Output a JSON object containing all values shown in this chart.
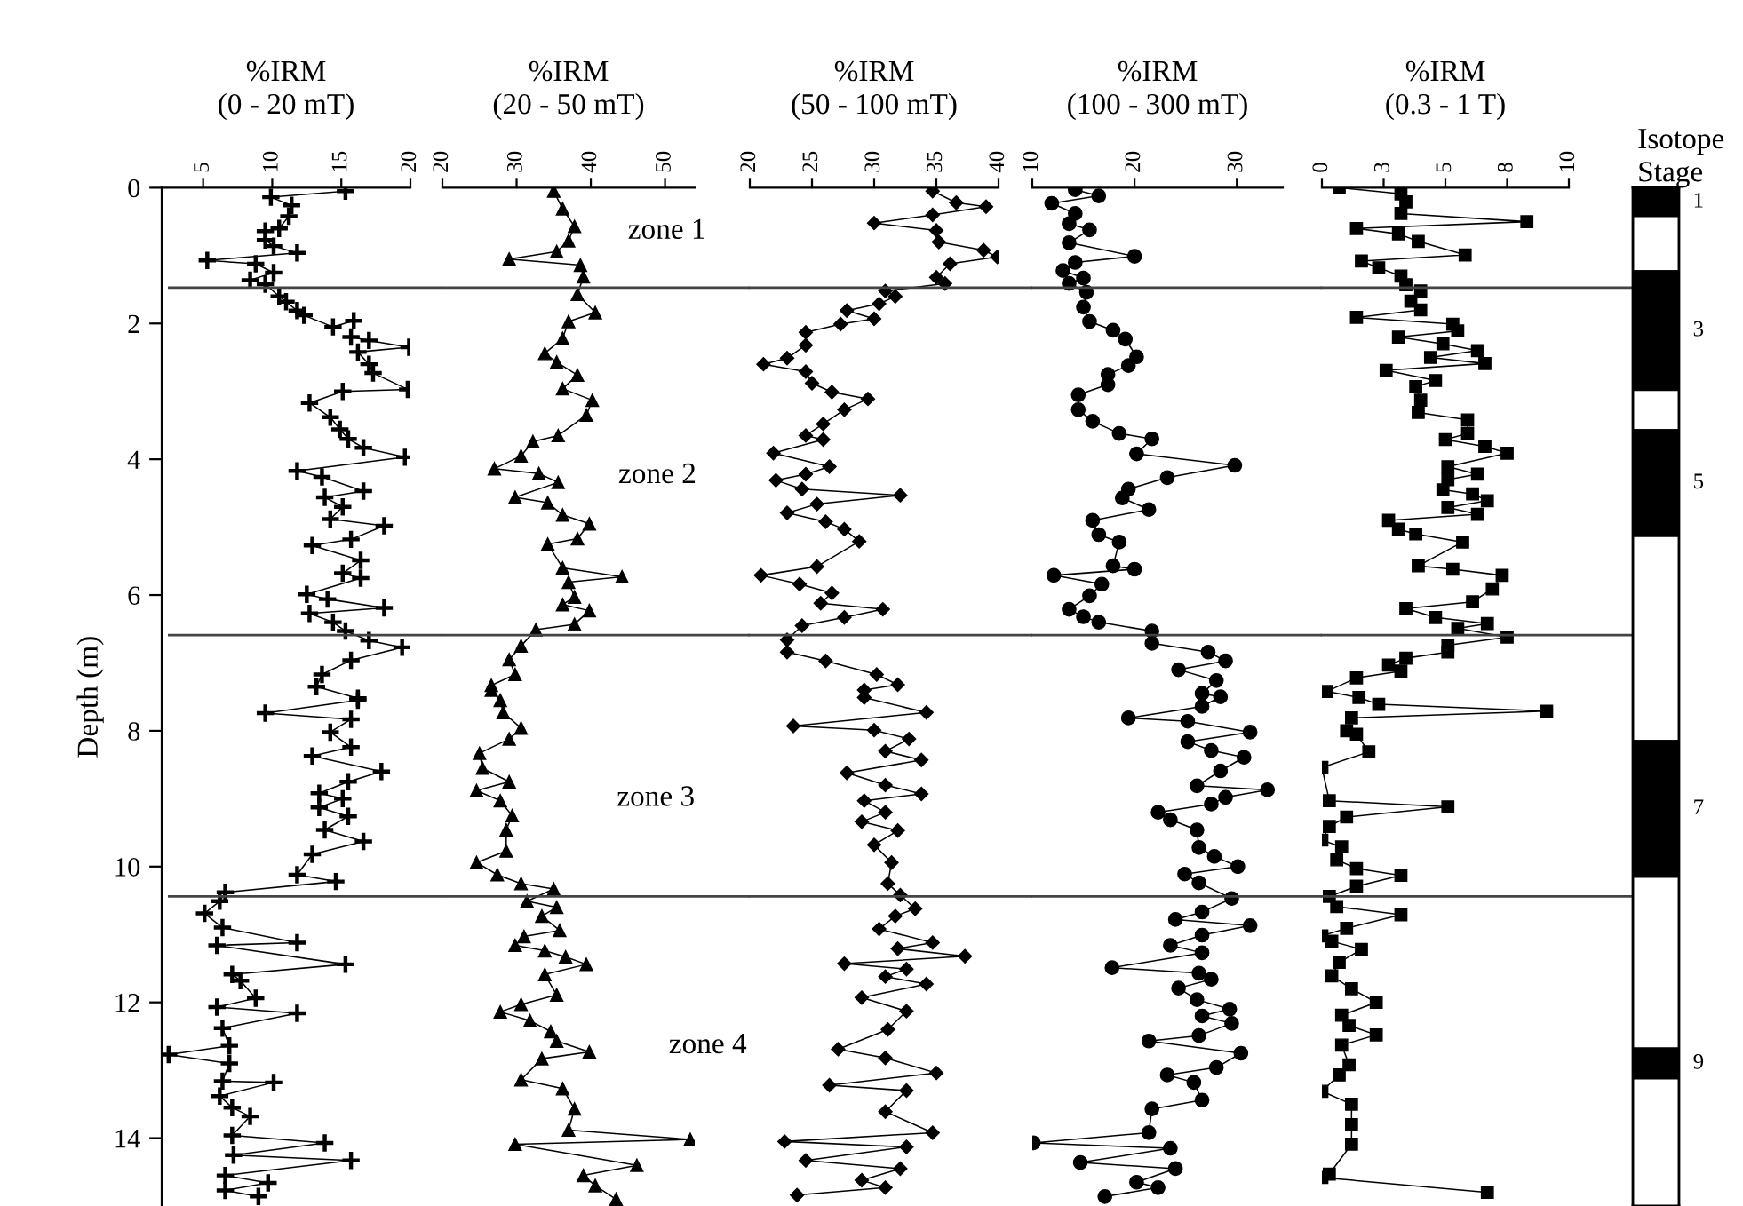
{
  "chart_data": [
    {
      "type": "line",
      "title": "%IRM\n(0 - 20 mT)",
      "ylabel": "Depth (m)",
      "marker": "cross",
      "xlim": [
        2,
        20
      ],
      "xticks": [
        5,
        10,
        15,
        20
      ],
      "ylim": [
        15,
        0
      ],
      "yticks": [
        0,
        2,
        4,
        6,
        8,
        10,
        12,
        14
      ],
      "series": [
        {
          "color": "#000000",
          "x": [
            15.3,
            9.9,
            11.4,
            11.2,
            10.5,
            9.5,
            9.5,
            10.1,
            11.8,
            5.3,
            8.8,
            10.1,
            8.4,
            9.5,
            10.5,
            11.0,
            11.8,
            12.3,
            14.4,
            15.9,
            15.7,
            17.0,
            19.9,
            16.2,
            17.0,
            17.3,
            19.8,
            15.1,
            12.7,
            14.2,
            14.9,
            15.5,
            16.6,
            19.6,
            11.8,
            13.6,
            16.6,
            13.8,
            15.1,
            14.2,
            18.1,
            15.7,
            12.9,
            16.4,
            15.1,
            16.4,
            12.5,
            14.0,
            18.1,
            12.7,
            14.4,
            15.3,
            17.0,
            19.4,
            15.7,
            13.6,
            13.2,
            16.2,
            16.2,
            9.5,
            15.7,
            14.2,
            15.7,
            12.9,
            17.9,
            15.5,
            13.4,
            15.1,
            13.4,
            15.5,
            13.8,
            16.6,
            12.9,
            11.8,
            14.6,
            6.6,
            6.2,
            5.1,
            6.4,
            11.8,
            6.0,
            15.3,
            7.1,
            7.7,
            8.8,
            6.0,
            11.8,
            6.4,
            6.9,
            2.5,
            6.9,
            6.4,
            10.1,
            6.2,
            7.1,
            8.4,
            7.1,
            13.8,
            7.2,
            15.7,
            6.6,
            9.7,
            6.6,
            9.0
          ],
          "values": [
            0.05,
            0.14,
            0.26,
            0.42,
            0.6,
            0.64,
            0.77,
            0.86,
            0.96,
            1.07,
            1.12,
            1.25,
            1.36,
            1.42,
            1.6,
            1.68,
            1.81,
            1.88,
            2.05,
            1.96,
            2.2,
            2.25,
            2.35,
            2.42,
            2.6,
            2.73,
            2.97,
            3.0,
            3.17,
            3.38,
            3.56,
            3.7,
            3.83,
            3.97,
            4.17,
            4.26,
            4.47,
            4.56,
            4.7,
            4.88,
            4.98,
            5.18,
            5.27,
            5.49,
            5.68,
            5.75,
            5.99,
            6.06,
            6.19,
            6.27,
            6.4,
            6.53,
            6.67,
            6.77,
            6.96,
            7.17,
            7.35,
            7.52,
            7.55,
            7.74,
            7.83,
            8.02,
            8.24,
            8.37,
            8.6,
            8.75,
            8.92,
            9.0,
            9.13,
            9.26,
            9.46,
            9.63,
            9.82,
            10.12,
            10.22,
            10.38,
            10.51,
            10.69,
            10.9,
            11.12,
            11.16,
            11.44,
            11.59,
            11.68,
            11.94,
            12.07,
            12.16,
            12.38,
            12.64,
            12.77,
            12.9,
            13.16,
            13.18,
            13.38,
            13.55,
            13.68,
            13.96,
            14.07,
            14.25,
            14.33,
            14.55,
            14.66,
            14.77,
            14.86
          ]
        }
      ],
      "ref_lines": [
        {
          "axis": "y",
          "value": 1.47
        },
        {
          "axis": "y",
          "value": 6.59
        },
        {
          "axis": "y",
          "value": 10.44
        }
      ],
      "tick_labels": true
    },
    {
      "type": "line",
      "title": "%IRM\n(20 - 50 mT)",
      "marker": "triangle",
      "xlim": [
        20,
        54
      ],
      "xticks": [
        20,
        30,
        40,
        50
      ],
      "ylim": [
        15,
        0
      ],
      "tick_labels": "x",
      "series": [
        {
          "color": "#000000",
          "x": [
            35.0,
            36.2,
            37.8,
            37.0,
            35.4,
            29.0,
            38.6,
            39.0,
            38.2,
            40.6,
            37.0,
            36.2,
            33.8,
            35.4,
            38.2,
            36.2,
            40.2,
            39.4,
            35.6,
            32.2,
            30.6,
            27.0,
            33.0,
            35.6,
            29.8,
            34.2,
            36.2,
            39.8,
            38.2,
            34.2,
            36.2,
            44.2,
            37.0,
            37.8,
            36.2,
            39.8,
            37.8,
            32.6,
            30.6,
            29.0,
            29.8,
            26.6,
            26.6,
            27.8,
            28.2,
            30.6,
            29.0,
            25.0,
            25.4,
            29.0,
            24.6,
            27.8,
            29.4,
            28.6,
            28.6,
            24.6,
            27.4,
            30.6,
            35.0,
            31.4,
            35.4,
            33.4,
            35.8,
            31.0,
            29.8,
            33.8,
            36.6,
            39.4,
            33.8,
            35.4,
            30.6,
            27.8,
            31.8,
            34.6,
            35.4,
            39.8,
            33.4,
            30.6,
            36.2,
            37.8,
            37.0,
            53.4,
            29.8,
            46.2,
            39.0,
            40.6,
            43.4
          ],
          "values": [
            0.05,
            0.31,
            0.57,
            0.78,
            0.94,
            1.05,
            1.14,
            1.31,
            1.57,
            1.84,
            1.97,
            2.22,
            2.44,
            2.57,
            2.76,
            2.96,
            3.13,
            3.35,
            3.65,
            3.74,
            3.95,
            4.14,
            4.21,
            4.34,
            4.56,
            4.64,
            4.82,
            4.95,
            5.17,
            5.25,
            5.6,
            5.73,
            5.81,
            6.03,
            6.14,
            6.23,
            6.43,
            6.51,
            6.75,
            6.95,
            7.17,
            7.33,
            7.4,
            7.55,
            7.73,
            7.96,
            8.12,
            8.33,
            8.55,
            8.75,
            8.88,
            9.03,
            9.25,
            9.46,
            9.77,
            9.94,
            10.12,
            10.25,
            10.33,
            10.51,
            10.6,
            10.73,
            10.94,
            11.03,
            11.16,
            11.24,
            11.33,
            11.44,
            11.59,
            11.89,
            12.03,
            12.14,
            12.27,
            12.43,
            12.57,
            12.73,
            12.83,
            13.14,
            13.27,
            13.57,
            13.88,
            14.02,
            14.09,
            14.4,
            14.55,
            14.7,
            14.9
          ]
        }
      ],
      "ref_lines": [
        {
          "axis": "y",
          "value": 1.47
        },
        {
          "axis": "y",
          "value": 6.59
        },
        {
          "axis": "y",
          "value": 10.44
        }
      ],
      "annotations": [
        "zone 1",
        "zone 2",
        "zone 3",
        "zone 4"
      ]
    },
    {
      "type": "line",
      "title": "%IRM\n(50 - 100 mT)",
      "marker": "diamond",
      "xlim": [
        20,
        40
      ],
      "xticks": [
        20,
        25,
        30,
        35,
        40
      ],
      "ylim": [
        15,
        0
      ],
      "tick_labels": "x",
      "series": [
        {
          "color": "#000000",
          "x": [
            34.7,
            36.6,
            39.0,
            34.7,
            30.0,
            35.0,
            35.2,
            38.8,
            39.9,
            36.1,
            35.0,
            35.7,
            30.9,
            31.7,
            30.4,
            27.8,
            30.0,
            27.3,
            24.5,
            24.5,
            23.0,
            21.1,
            24.5,
            25.0,
            26.6,
            29.5,
            27.6,
            25.9,
            24.5,
            25.9,
            21.9,
            26.4,
            24.5,
            22.1,
            24.2,
            32.1,
            25.4,
            23.0,
            26.1,
            27.6,
            28.8,
            25.4,
            20.9,
            24.0,
            26.6,
            25.7,
            30.7,
            27.6,
            24.2,
            23.0,
            23.0,
            26.1,
            30.2,
            31.9,
            29.2,
            29.2,
            34.2,
            23.5,
            30.0,
            32.8,
            30.9,
            33.8,
            27.8,
            30.9,
            33.8,
            29.2,
            30.9,
            29.0,
            31.9,
            30.0,
            31.4,
            31.1,
            32.1,
            33.3,
            31.7,
            30.4,
            34.7,
            31.9,
            37.3,
            27.6,
            32.6,
            30.9,
            34.2,
            29.0,
            32.6,
            31.1,
            27.1,
            30.9,
            35.0,
            26.4,
            32.6,
            30.9,
            34.7,
            22.8,
            32.6,
            24.5,
            32.1,
            29.0,
            30.9,
            23.8
          ],
          "values": [
            0.05,
            0.22,
            0.28,
            0.4,
            0.52,
            0.63,
            0.8,
            0.92,
            1.02,
            1.12,
            1.32,
            1.41,
            1.52,
            1.6,
            1.71,
            1.81,
            1.93,
            2.01,
            2.13,
            2.32,
            2.51,
            2.6,
            2.71,
            2.88,
            3.01,
            3.11,
            3.27,
            3.48,
            3.65,
            3.71,
            3.91,
            4.11,
            4.22,
            4.31,
            4.44,
            4.53,
            4.66,
            4.79,
            4.92,
            5.03,
            5.21,
            5.58,
            5.71,
            5.84,
            5.97,
            6.12,
            6.21,
            6.33,
            6.45,
            6.66,
            6.84,
            6.97,
            7.17,
            7.32,
            7.4,
            7.51,
            7.73,
            7.93,
            7.99,
            8.12,
            8.3,
            8.43,
            8.62,
            8.8,
            8.93,
            9.03,
            9.2,
            9.34,
            9.47,
            9.68,
            9.94,
            10.25,
            10.42,
            10.62,
            10.73,
            10.92,
            11.12,
            11.21,
            11.32,
            11.43,
            11.51,
            11.62,
            11.73,
            11.93,
            12.13,
            12.4,
            12.69,
            12.82,
            13.04,
            13.22,
            13.3,
            13.61,
            13.92,
            14.05,
            14.13,
            14.33,
            14.45,
            14.62,
            14.73,
            14.84
          ]
        }
      ],
      "ref_lines": [
        {
          "axis": "y",
          "value": 1.47
        },
        {
          "axis": "y",
          "value": 6.59
        },
        {
          "axis": "y",
          "value": 10.44
        }
      ]
    },
    {
      "type": "line",
      "title": "%IRM\n(100 - 300 mT)",
      "marker": "circle",
      "xlim": [
        10,
        34.5
      ],
      "xticks": [
        10,
        20,
        30
      ],
      "ylim": [
        15,
        0
      ],
      "tick_labels": "x",
      "series": [
        {
          "color": "#000000",
          "x": [
            14.2,
            16.5,
            11.9,
            14.2,
            13.6,
            15.6,
            13.6,
            20.0,
            14.2,
            13.0,
            15.0,
            13.6,
            15.3,
            15.0,
            15.6,
            17.9,
            19.1,
            20.2,
            19.4,
            17.4,
            17.4,
            14.5,
            14.5,
            15.9,
            18.5,
            21.7,
            20.2,
            29.8,
            23.2,
            19.4,
            18.8,
            21.4,
            15.9,
            16.5,
            18.5,
            17.9,
            20.0,
            12.1,
            16.8,
            15.6,
            13.6,
            15.0,
            16.5,
            21.7,
            21.7,
            27.2,
            28.9,
            24.3,
            28.0,
            26.6,
            28.4,
            26.6,
            19.4,
            25.2,
            31.3,
            25.2,
            27.5,
            30.7,
            28.4,
            26.1,
            33.0,
            28.9,
            27.5,
            22.3,
            23.5,
            26.1,
            26.3,
            27.8,
            30.1,
            24.9,
            26.3,
            29.5,
            26.6,
            24.0,
            31.3,
            26.6,
            23.5,
            26.6,
            17.8,
            26.3,
            27.5,
            24.3,
            26.1,
            29.3,
            26.6,
            29.5,
            26.3,
            21.4,
            30.4,
            28.0,
            23.2,
            25.8,
            26.6,
            21.7,
            21.4,
            10.1,
            23.5,
            14.7,
            24.0,
            20.2,
            22.3,
            17.1
          ],
          "values": [
            0.03,
            0.12,
            0.23,
            0.38,
            0.53,
            0.62,
            0.81,
            1.01,
            1.1,
            1.22,
            1.33,
            1.41,
            1.54,
            1.76,
            1.97,
            2.1,
            2.23,
            2.49,
            2.62,
            2.75,
            2.9,
            3.05,
            3.27,
            3.44,
            3.62,
            3.7,
            3.92,
            4.09,
            4.27,
            4.44,
            4.57,
            4.74,
            4.9,
            5.11,
            5.22,
            5.57,
            5.62,
            5.71,
            5.84,
            6.01,
            6.21,
            6.32,
            6.4,
            6.53,
            6.71,
            6.84,
            6.97,
            7.1,
            7.26,
            7.45,
            7.5,
            7.64,
            7.81,
            7.86,
            8.02,
            8.16,
            8.29,
            8.39,
            8.59,
            8.81,
            8.87,
            8.98,
            9.08,
            9.2,
            9.31,
            9.46,
            9.72,
            9.85,
            10.0,
            10.11,
            10.24,
            10.47,
            10.67,
            10.78,
            10.87,
            11.01,
            11.16,
            11.27,
            11.49,
            11.57,
            11.66,
            11.79,
            11.96,
            12.1,
            12.2,
            12.31,
            12.49,
            12.57,
            12.75,
            12.96,
            13.07,
            13.18,
            13.44,
            13.57,
            13.92,
            14.07,
            14.15,
            14.36,
            14.45,
            14.65,
            14.73,
            14.86
          ]
        }
      ],
      "ref_lines": [
        {
          "axis": "y",
          "value": 1.47
        },
        {
          "axis": "y",
          "value": 6.59
        },
        {
          "axis": "y",
          "value": 10.44
        }
      ]
    },
    {
      "type": "line",
      "title": "%IRM\n(0.3 - 1 T)",
      "marker": "square",
      "xlim": [
        0,
        10
      ],
      "xticks": [
        0,
        {
          "value": 2.5,
          "label": "3"
        },
        5,
        {
          "value": 7.5,
          "label": "8"
        },
        10
      ],
      "ylim": [
        15,
        0
      ],
      "tick_labels": "x",
      "series": [
        {
          "color": "#000000",
          "x": [
            0.7,
            3.2,
            3.4,
            3.2,
            8.3,
            1.4,
            3.1,
            3.9,
            5.8,
            1.6,
            2.3,
            3.2,
            3.4,
            4.0,
            3.6,
            4.0,
            1.4,
            5.3,
            5.5,
            3.1,
            4.9,
            6.3,
            4.4,
            6.6,
            2.6,
            4.6,
            3.8,
            4.0,
            3.9,
            5.9,
            5.9,
            5.0,
            6.6,
            7.5,
            5.1,
            6.3,
            5.1,
            4.9,
            6.1,
            6.7,
            5.1,
            6.3,
            2.7,
            3.1,
            3.8,
            5.7,
            3.9,
            5.3,
            7.3,
            6.9,
            6.1,
            3.4,
            4.6,
            6.7,
            5.5,
            7.5,
            5.1,
            5.1,
            3.4,
            2.7,
            3.2,
            1.4,
            0.2,
            1.5,
            2.3,
            9.1,
            1.2,
            1.0,
            1.4,
            1.9,
            0.0,
            0.3,
            5.1,
            1.0,
            0.3,
            0.0,
            0.8,
            0.6,
            1.4,
            3.2,
            1.4,
            0.3,
            0.6,
            3.2,
            1.0,
            0.0,
            0.4,
            1.6,
            0.7,
            0.4,
            1.2,
            2.2,
            0.8,
            1.1,
            2.2,
            0.8,
            1.1,
            0.7,
            0.0,
            1.2,
            1.2,
            1.2,
            0.3,
            0.0,
            6.7
          ],
          "values": [
            0.0,
            0.09,
            0.21,
            0.38,
            0.5,
            0.6,
            0.68,
            0.79,
            0.99,
            1.08,
            1.18,
            1.3,
            1.43,
            1.52,
            1.67,
            1.8,
            1.91,
            2.01,
            2.11,
            2.2,
            2.3,
            2.4,
            2.5,
            2.59,
            2.69,
            2.84,
            2.93,
            3.13,
            3.31,
            3.42,
            3.62,
            3.71,
            3.81,
            3.91,
            4.11,
            4.22,
            4.3,
            4.45,
            4.51,
            4.61,
            4.71,
            4.81,
            4.9,
            5.03,
            5.1,
            5.22,
            5.57,
            5.62,
            5.71,
            5.91,
            6.1,
            6.2,
            6.33,
            6.42,
            6.49,
            6.62,
            6.74,
            6.84,
            6.93,
            7.03,
            7.12,
            7.22,
            7.42,
            7.51,
            7.61,
            7.71,
            7.81,
            8.0,
            8.05,
            8.31,
            8.54,
            9.03,
            9.12,
            9.27,
            9.41,
            9.61,
            9.71,
            9.9,
            10.03,
            10.13,
            10.29,
            10.44,
            10.59,
            10.71,
            10.91,
            11.02,
            11.1,
            11.22,
            11.41,
            11.61,
            11.8,
            12.0,
            12.19,
            12.34,
            12.48,
            12.63,
            12.92,
            13.07,
            13.31,
            13.5,
            13.8,
            14.09,
            14.53,
            14.58,
            14.8
          ]
        }
      ],
      "ref_lines": [
        {
          "axis": "y",
          "value": 1.47
        },
        {
          "axis": "y",
          "value": 6.59
        },
        {
          "axis": "y",
          "value": 10.44
        }
      ]
    },
    {
      "type": "bar",
      "title": "Isotope\nStage",
      "stacked": true,
      "categories": [
        null
      ],
      "ylim": [
        15,
        0
      ],
      "tick_labels": false,
      "series": [
        {
          "name": "1",
          "color": "#000000",
          "values": [
            0.42
          ]
        },
        {
          "color": "#ffffff",
          "values": [
            0.81
          ]
        },
        {
          "name": "3",
          "color": "#000000",
          "values": [
            1.75
          ]
        },
        {
          "color": "#ffffff",
          "values": [
            0.59
          ]
        },
        {
          "name": "5",
          "color": "#000000",
          "values": [
            1.56
          ]
        },
        {
          "color": "#ffffff",
          "values": [
            3.02
          ]
        },
        {
          "name": "7",
          "color": "#000000",
          "values": [
            2.0
          ]
        },
        {
          "color": "#ffffff",
          "values": [
            2.53
          ]
        },
        {
          "name": "9",
          "color": "#000000",
          "values": [
            0.44
          ]
        },
        {
          "color": "#ffffff",
          "values": [
            1.88
          ]
        }
      ]
    }
  ]
}
